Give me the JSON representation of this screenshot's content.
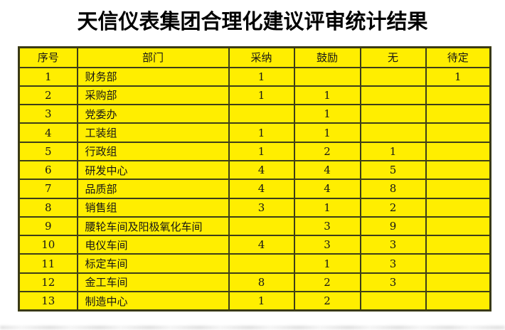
{
  "title": "天信仪表集团合理化建议评审统计结果",
  "colors": {
    "cell_background": "#ffee00",
    "grid_border": "#3e3e18",
    "title_text": "#000000"
  },
  "table": {
    "headers": [
      "序号",
      "部门",
      "采纳",
      "鼓励",
      "无",
      "待定"
    ],
    "rows": [
      [
        "1",
        "财务部",
        "1",
        "",
        "",
        "1"
      ],
      [
        "2",
        "采购部",
        "1",
        "1",
        "",
        ""
      ],
      [
        "3",
        "党委办",
        "",
        "1",
        "",
        ""
      ],
      [
        "4",
        "工装组",
        "1",
        "1",
        "",
        ""
      ],
      [
        "5",
        "行政组",
        "1",
        "2",
        "1",
        ""
      ],
      [
        "6",
        "研发中心",
        "4",
        "4",
        "5",
        ""
      ],
      [
        "7",
        "品质部",
        "4",
        "4",
        "8",
        ""
      ],
      [
        "8",
        "销售组",
        "3",
        "1",
        "2",
        ""
      ],
      [
        "9",
        "腰轮车间及阳极氧化车间",
        "",
        "3",
        "9",
        ""
      ],
      [
        "10",
        "电仪车间",
        "4",
        "3",
        "3",
        ""
      ],
      [
        "11",
        "标定车间",
        "",
        "1",
        "3",
        ""
      ],
      [
        "12",
        "金工车间",
        "8",
        "2",
        "3",
        ""
      ],
      [
        "13",
        "制造中心",
        "1",
        "2",
        "",
        ""
      ]
    ]
  }
}
